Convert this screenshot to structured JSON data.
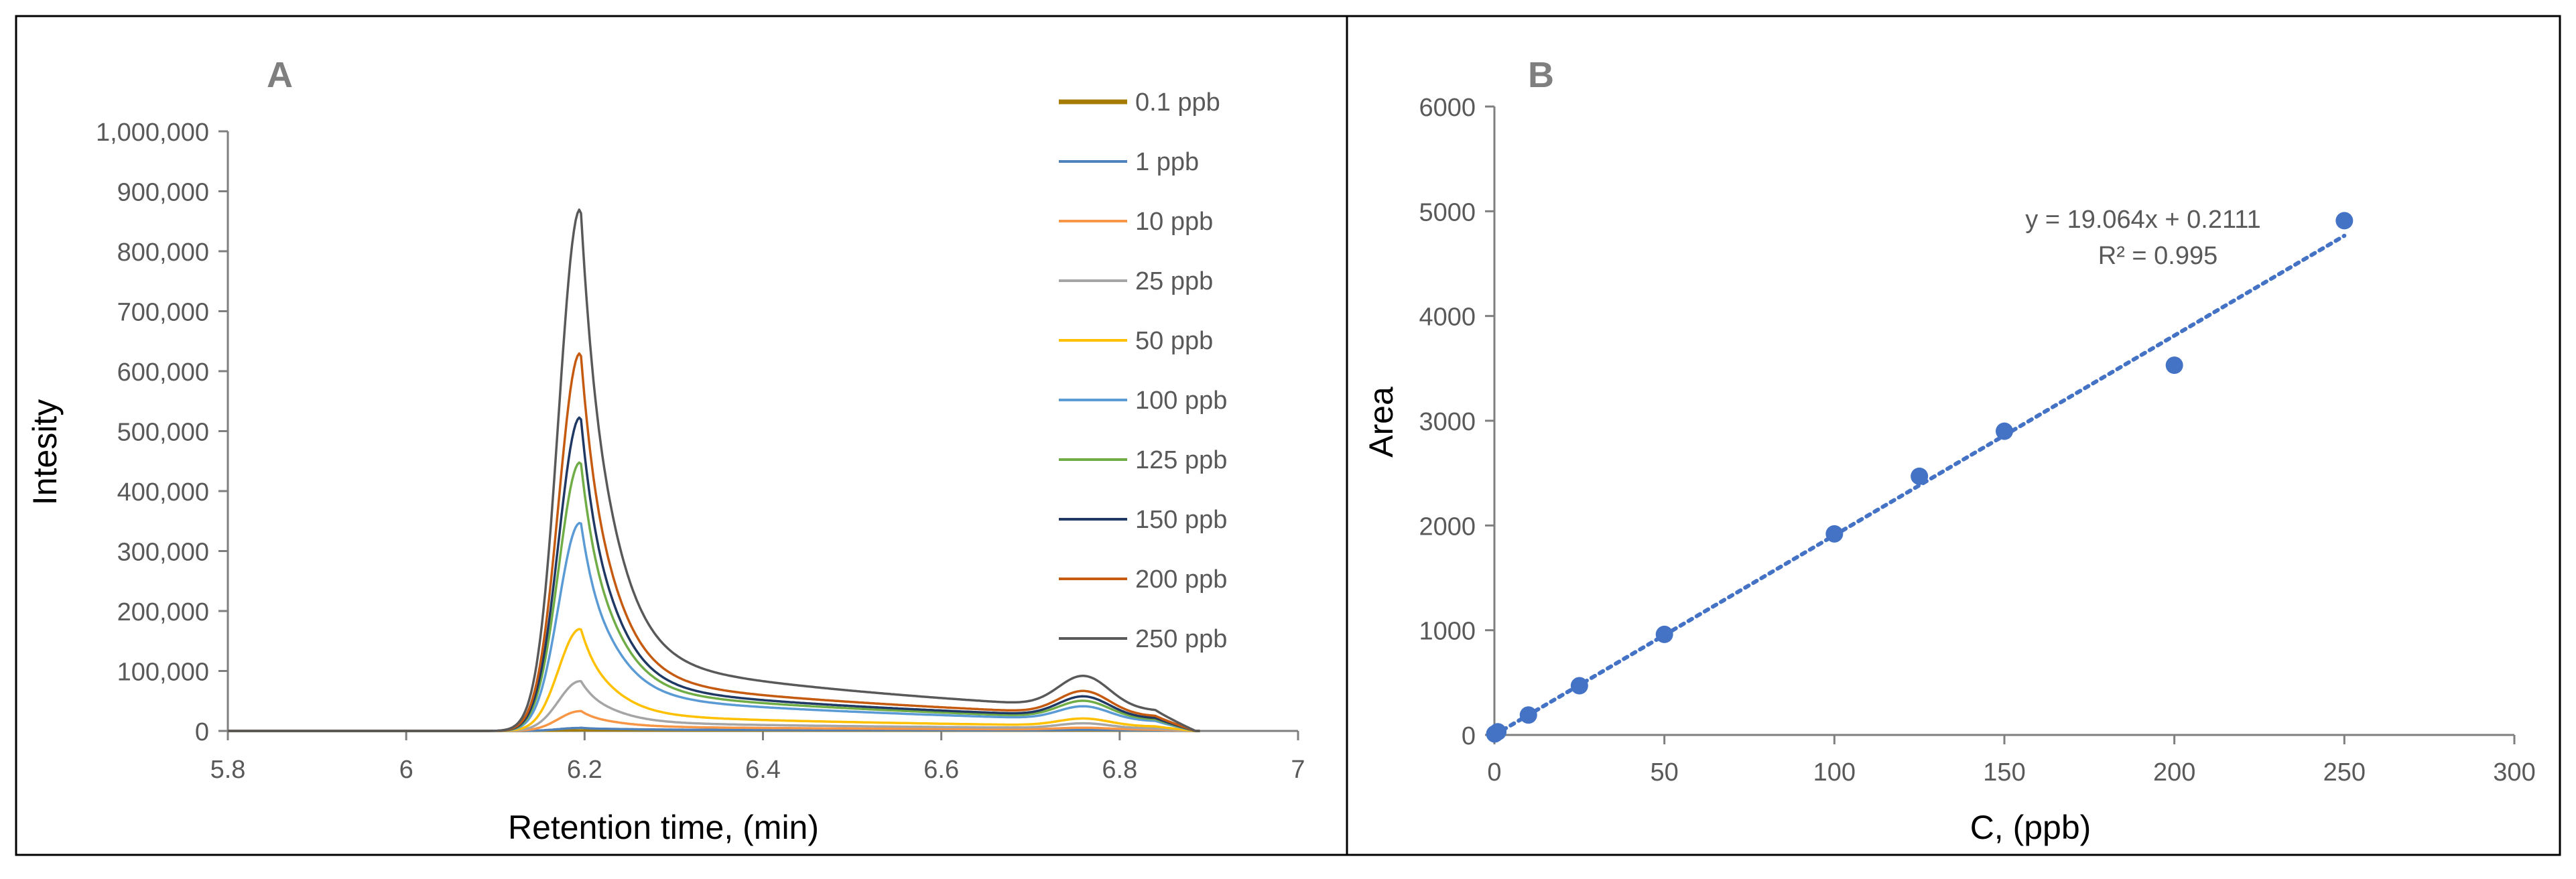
{
  "panels": {
    "a_label": "A",
    "b_label": "B"
  },
  "colors": {
    "0.1 ppb": "#a57c00",
    "1 ppb": "#4f81bd",
    "10 ppb": "#f79646",
    "25 ppb": "#a5a5a5",
    "50 ppb": "#ffc000",
    "100 ppb": "#5b9bd5",
    "125 ppb": "#70ad47",
    "150 ppb": "#1f3864",
    "200 ppb": "#c55a11",
    "250 ppb": "#595959",
    "scatter": "#4472c4",
    "axis": "#7f7f7f",
    "tick_text": "#595959"
  },
  "chart_data": [
    {
      "type": "line",
      "title": "A",
      "xlabel": "Retention time, (min)",
      "ylabel": "Intesity",
      "xlim": [
        5.8,
        7
      ],
      "ylim": [
        0,
        1000000
      ],
      "x_ticks": [
        "5.8",
        "6",
        "6.2",
        "6.4",
        "6.6",
        "6.8",
        "7"
      ],
      "y_ticks": [
        "0",
        "100,000",
        "200,000",
        "300,000",
        "400,000",
        "500,000",
        "600,000",
        "700,000",
        "800,000",
        "900,000",
        "1,000,000"
      ],
      "grid": false,
      "legend_position": "top-right",
      "series": [
        {
          "name": "0.1 ppb",
          "peak": 1000,
          "tail": 800,
          "bump": 500
        },
        {
          "name": "1 ppb",
          "peak": 5000,
          "tail": 2000,
          "bump": 1000
        },
        {
          "name": "10 ppb",
          "peak": 33000,
          "tail": 6000,
          "bump": 3000
        },
        {
          "name": "25 ppb",
          "peak": 83000,
          "tail": 12000,
          "bump": 8000
        },
        {
          "name": "50 ppb",
          "peak": 170000,
          "tail": 22000,
          "bump": 12000
        },
        {
          "name": "100 ppb",
          "peak": 347000,
          "tail": 48000,
          "bump": 22000
        },
        {
          "name": "125 ppb",
          "peak": 448000,
          "tail": 56000,
          "bump": 28000
        },
        {
          "name": "150 ppb",
          "peak": 523000,
          "tail": 62000,
          "bump": 33000
        },
        {
          "name": "200 ppb",
          "peak": 630000,
          "tail": 72000,
          "bump": 38000
        },
        {
          "name": "250 ppb",
          "peak": 870000,
          "tail": 100000,
          "bump": 52000
        }
      ]
    },
    {
      "type": "scatter",
      "title": "B",
      "xlabel": "C, (ppb)",
      "ylabel": "Area",
      "xlim": [
        0,
        300
      ],
      "ylim": [
        0,
        6000
      ],
      "x_ticks": [
        "0",
        "50",
        "100",
        "150",
        "200",
        "250",
        "300"
      ],
      "y_ticks": [
        "0",
        "1000",
        "2000",
        "3000",
        "4000",
        "5000",
        "6000"
      ],
      "grid": false,
      "points": [
        {
          "x": 0.1,
          "y": 10
        },
        {
          "x": 1,
          "y": 30
        },
        {
          "x": 10,
          "y": 190
        },
        {
          "x": 25,
          "y": 470
        },
        {
          "x": 50,
          "y": 960
        },
        {
          "x": 100,
          "y": 1920
        },
        {
          "x": 125,
          "y": 2470
        },
        {
          "x": 150,
          "y": 2900
        },
        {
          "x": 200,
          "y": 3530
        },
        {
          "x": 250,
          "y": 4910
        }
      ],
      "trendline": {
        "slope": 19.064,
        "intercept": 0.2111,
        "x_range": [
          0,
          250
        ]
      },
      "equation": "y = 19.064x + 0.2111",
      "r_squared": "R² = 0.995"
    }
  ]
}
